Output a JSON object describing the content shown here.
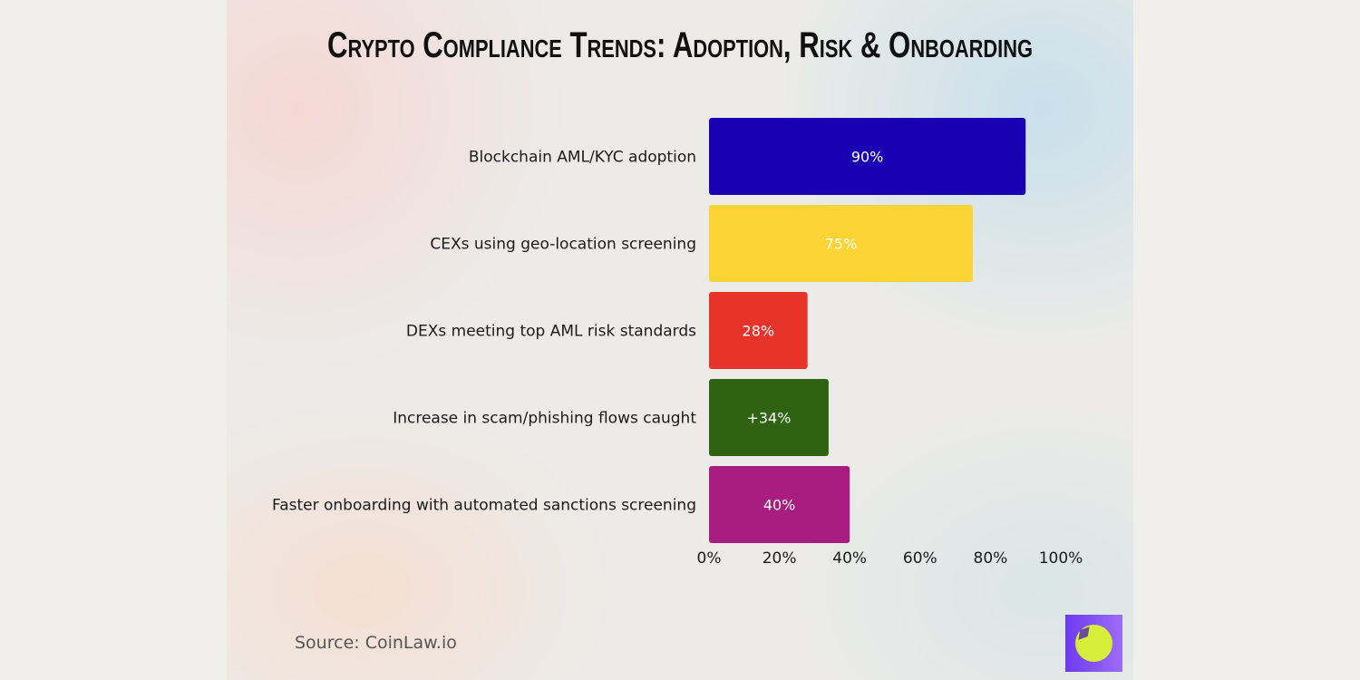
{
  "chart_data": {
    "type": "bar",
    "orientation": "horizontal",
    "title": "Crypto Compliance Trends: Adoption, Risk & Onboarding",
    "categories": [
      "Blockchain AML/KYC adoption",
      "CEXs using geo-location screening",
      "DEXs meeting top AML risk standards",
      "Increase in scam/phishing flows caught",
      "Faster onboarding with automated sanctions screening"
    ],
    "values": [
      90,
      75,
      28,
      34,
      40
    ],
    "data_labels": [
      "90%",
      "75%",
      "28%",
      "+34%",
      "40%"
    ],
    "colors": [
      "#1a00b3",
      "#fdd435",
      "#e8332a",
      "#2f6312",
      "#a81d80"
    ],
    "xlim": [
      0,
      100
    ],
    "xticks": [
      "0%",
      "20%",
      "40%",
      "60%",
      "80%",
      "100%"
    ],
    "xlabel": "",
    "ylabel": "",
    "grid": false,
    "legend": "none"
  },
  "footer": {
    "source": "Source: CoinLaw.io",
    "logo_icon": "compass-icon"
  }
}
